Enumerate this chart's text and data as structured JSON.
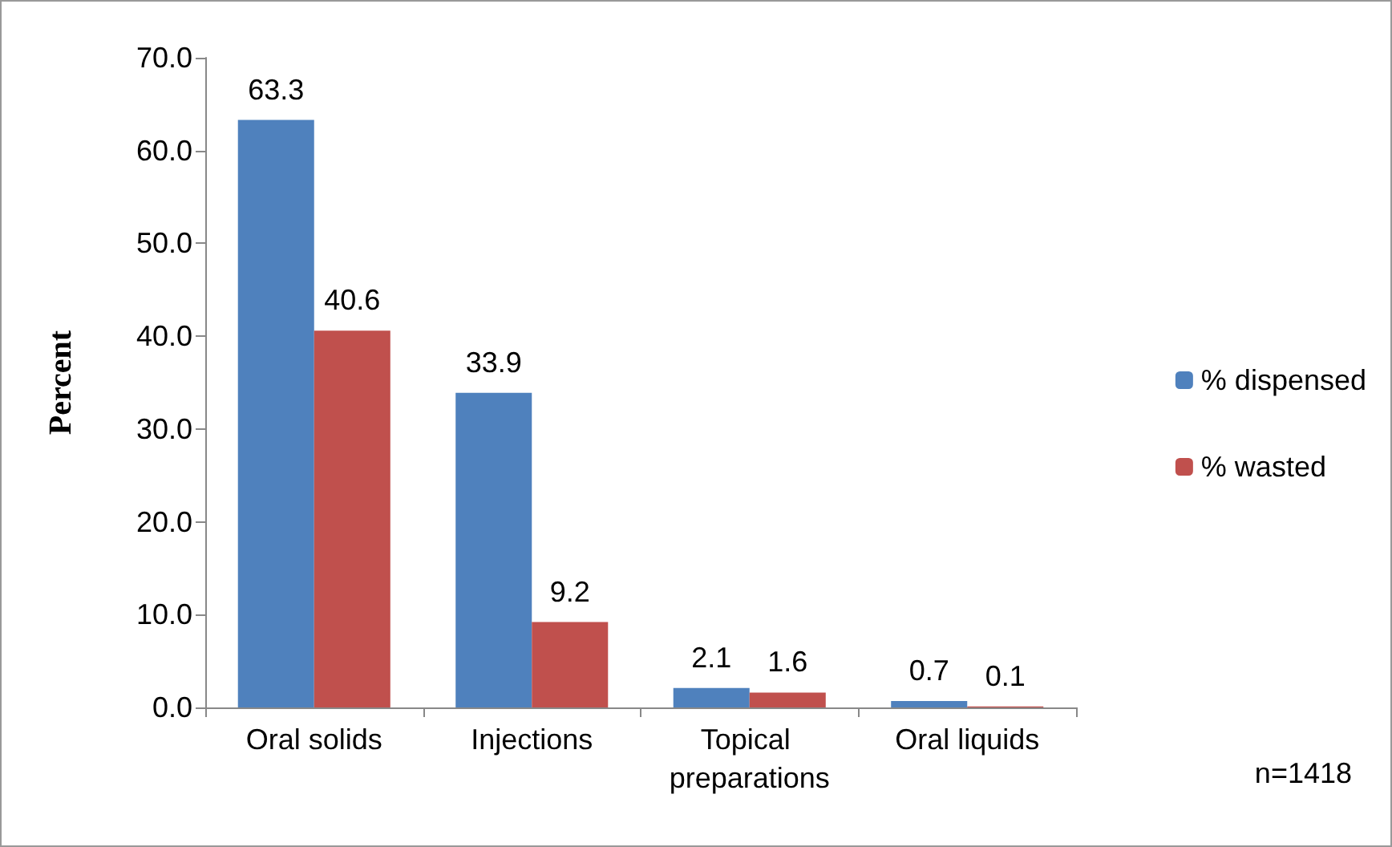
{
  "chart_data": {
    "type": "bar",
    "ylabel": "Percent",
    "categories": [
      "Oral solids",
      "Injections",
      "Topical preparations",
      "Oral liquids"
    ],
    "series": [
      {
        "name": "% dispensed",
        "color": "#4f81bd",
        "values": [
          63.3,
          33.9,
          2.1,
          0.7
        ]
      },
      {
        "name": "% wasted",
        "color": "#c0504d",
        "values": [
          40.6,
          9.2,
          1.6,
          0.1
        ]
      }
    ],
    "ylim": [
      0,
      70
    ],
    "yticks": [
      {
        "value": 0,
        "label": "0.0"
      },
      {
        "value": 10,
        "label": "10.0"
      },
      {
        "value": 20,
        "label": "20.0"
      },
      {
        "value": 30,
        "label": "30.0"
      },
      {
        "value": 40,
        "label": "40.0"
      },
      {
        "value": 50,
        "label": "50.0"
      },
      {
        "value": 60,
        "label": "60.0"
      },
      {
        "value": 70,
        "label": "70.0"
      }
    ],
    "data_labels": true,
    "grid": false,
    "legend": "right",
    "annotations": [
      "n=1418"
    ]
  }
}
